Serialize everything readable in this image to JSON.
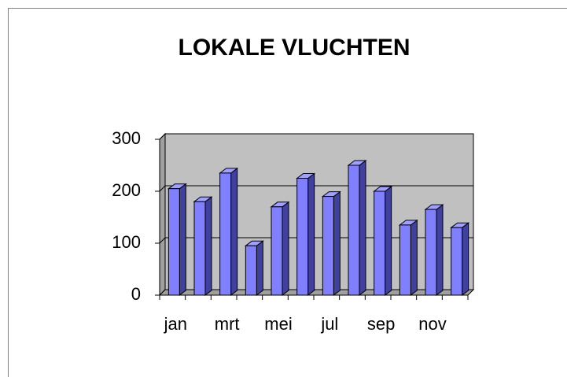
{
  "chart_data": {
    "type": "bar3d",
    "title": "LOKALE VLUCHTEN",
    "categories": [
      "jan",
      null,
      "mrt",
      null,
      "mei",
      null,
      "jul",
      null,
      "sep",
      null,
      "nov",
      null
    ],
    "values": [
      205,
      180,
      235,
      95,
      170,
      225,
      190,
      250,
      200,
      135,
      165,
      130
    ],
    "color": "#8080ff",
    "ylim": [
      0,
      300
    ],
    "yticks": [
      0,
      100,
      200,
      300
    ],
    "grid": true
  }
}
